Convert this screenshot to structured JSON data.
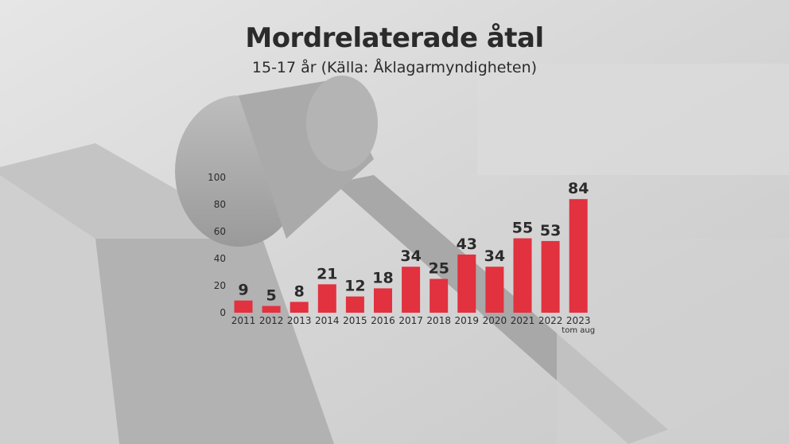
{
  "chart_data": {
    "type": "bar",
    "title": "Mordrelaterade åtal",
    "subtitle": "15-17 år (Källa: Åklagarmyndigheten)",
    "categories": [
      "2011",
      "2012",
      "2013",
      "2014",
      "2015",
      "2016",
      "2017",
      "2018",
      "2019",
      "2020",
      "2021",
      "2022",
      "2023"
    ],
    "category_notes": [
      "",
      "",
      "",
      "",
      "",
      "",
      "",
      "",
      "",
      "",
      "",
      "",
      "tom aug"
    ],
    "values": [
      9,
      5,
      8,
      21,
      12,
      18,
      34,
      25,
      43,
      34,
      55,
      53,
      84
    ],
    "data_labels": [
      "9",
      "5",
      "8",
      "21",
      "12",
      "18",
      "34",
      "25",
      "43",
      "34",
      "55",
      "53",
      "84"
    ],
    "yticks": [
      "0",
      "20",
      "40",
      "60",
      "80",
      "100"
    ],
    "ylim": [
      0,
      100
    ],
    "xlabel": "",
    "ylabel": "",
    "grid": false,
    "legend": "none",
    "colors": {
      "bar": "#e2313f",
      "text": "#2b2b2b",
      "background": "#d9d9d9"
    }
  }
}
